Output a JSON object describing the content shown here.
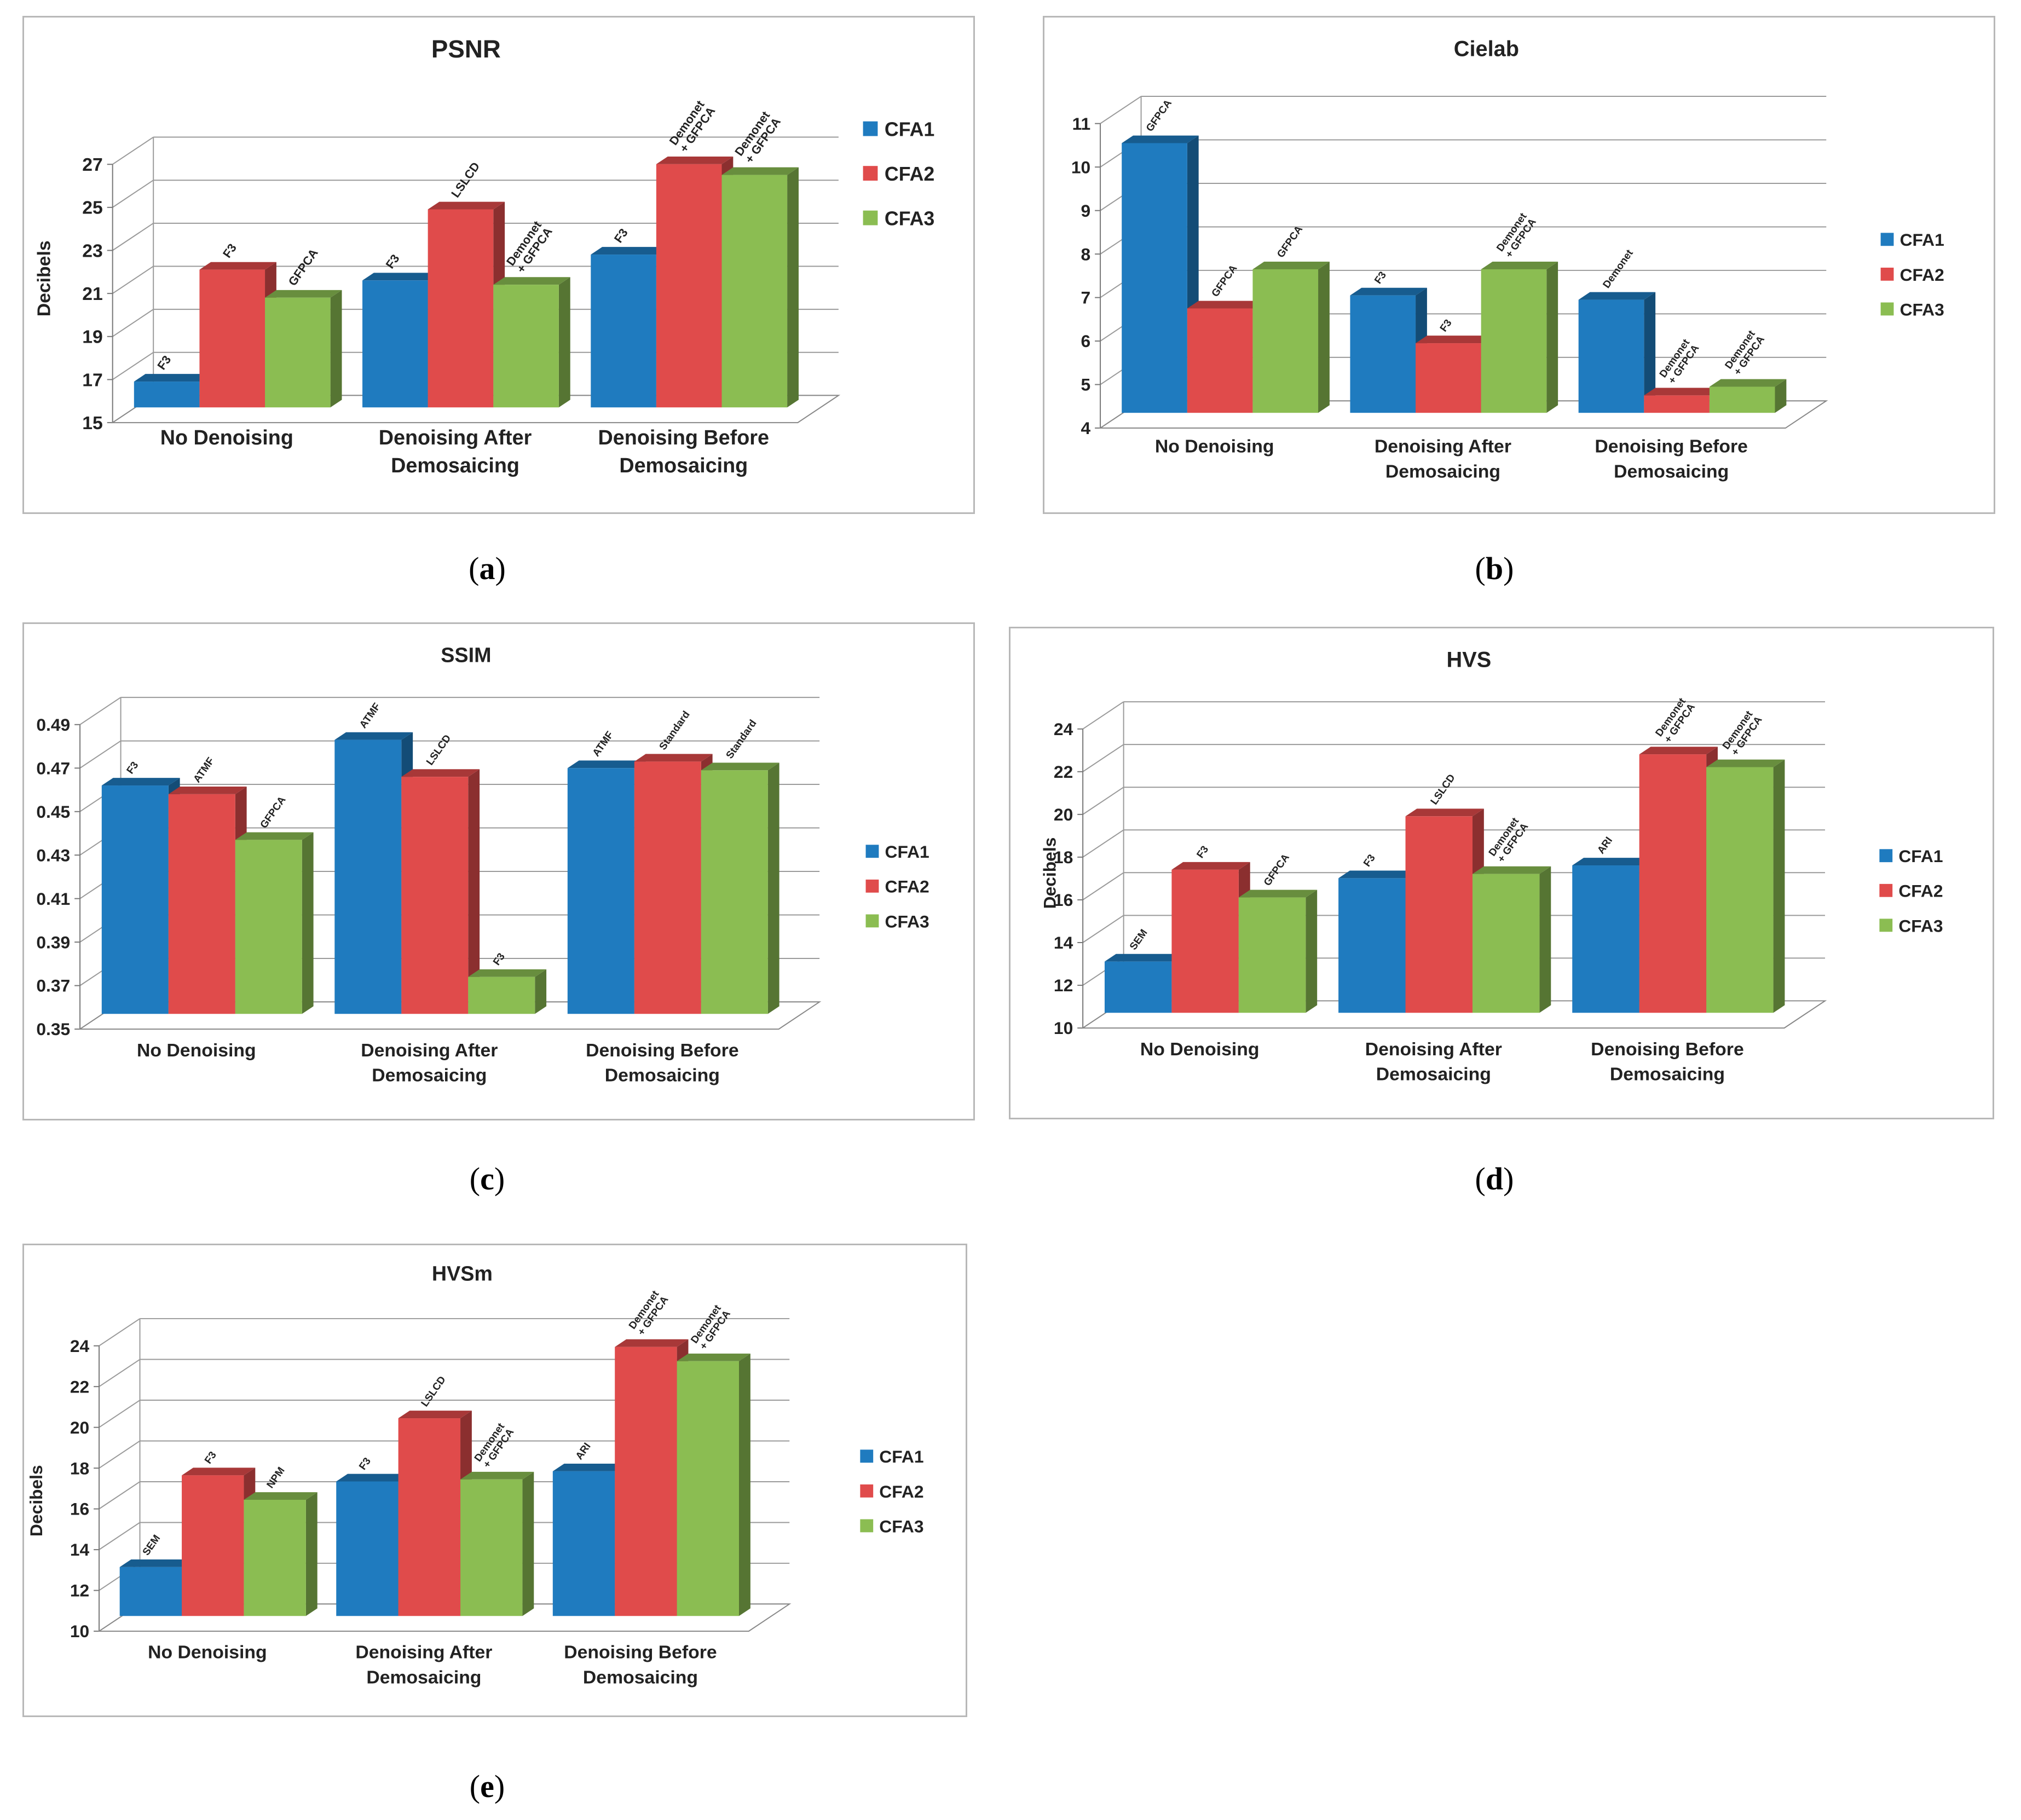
{
  "captions": {
    "a": [
      "(",
      "a",
      ")"
    ],
    "b": [
      "(",
      "b",
      ")"
    ],
    "c": [
      "(",
      "c",
      ")"
    ],
    "d": [
      "(",
      "d",
      ")"
    ],
    "e": [
      "(",
      "e",
      ")"
    ]
  },
  "colors": {
    "CFA1": "#1f7bbf",
    "CFA2": "#e04b4b",
    "CFA3": "#8bbd52"
  },
  "chart_data": [
    {
      "id": "a",
      "type": "bar",
      "title": "PSNR",
      "xlabel": "",
      "ylabel": "Decibels",
      "ylim": [
        15,
        27
      ],
      "yticks": [
        "15",
        "17",
        "19",
        "21",
        "23",
        "25",
        "27"
      ],
      "categories": [
        [
          "No Denoising"
        ],
        [
          "Denoising After",
          "Demosaicing"
        ],
        [
          "Denoising Before",
          "Demosaicing"
        ]
      ],
      "legend": [
        "CFA1",
        "CFA2",
        "CFA3"
      ],
      "series": [
        {
          "name": "CFA1",
          "values": [
            16.2,
            20.9,
            22.1
          ],
          "labels": [
            [
              "F3"
            ],
            [
              "F3"
            ],
            [
              "F3"
            ]
          ]
        },
        {
          "name": "CFA2",
          "values": [
            21.4,
            24.2,
            26.3
          ],
          "labels": [
            [
              "F3"
            ],
            [
              "LSLCD"
            ],
            [
              "Demonet",
              "+ GFPCA"
            ]
          ]
        },
        {
          "name": "CFA3",
          "values": [
            20.1,
            20.7,
            25.8
          ],
          "labels": [
            [
              "GFPCA"
            ],
            [
              "Demonet",
              "+ GFPCA"
            ],
            [
              "Demonet",
              "+ GFPCA"
            ]
          ]
        }
      ]
    },
    {
      "id": "b",
      "type": "bar",
      "title": "Cielab",
      "xlabel": "",
      "ylabel": "",
      "ylim": [
        4,
        11
      ],
      "yticks": [
        "4",
        "5",
        "6",
        "7",
        "8",
        "9",
        "10",
        "11"
      ],
      "categories": [
        [
          "No Denoising"
        ],
        [
          "Denoising After",
          "Demosaicing"
        ],
        [
          "Denoising Before",
          "Demosaicing"
        ]
      ],
      "legend": [
        "CFA1",
        "CFA2",
        "CFA3"
      ],
      "series": [
        {
          "name": "CFA1",
          "values": [
            10.2,
            6.7,
            6.6
          ],
          "labels": [
            [
              "GFPCA"
            ],
            [
              "F3"
            ],
            [
              "Demonet"
            ]
          ]
        },
        {
          "name": "CFA2",
          "values": [
            6.4,
            5.6,
            4.4
          ],
          "labels": [
            [
              "GFPCA"
            ],
            [
              "F3"
            ],
            [
              "Demonet",
              "+ GFPCA"
            ]
          ]
        },
        {
          "name": "CFA3",
          "values": [
            7.3,
            7.3,
            4.6
          ],
          "labels": [
            [
              "GFPCA"
            ],
            [
              "Demonet",
              "+ GFPCA"
            ],
            [
              "Demonet",
              "+ GFPCA"
            ]
          ]
        }
      ]
    },
    {
      "id": "c",
      "type": "bar",
      "title": "SSIM",
      "xlabel": "",
      "ylabel": "",
      "ylim": [
        0.35,
        0.49
      ],
      "yticks": [
        "0.35",
        "0.37",
        "0.39",
        "0.41",
        "0.43",
        "0.45",
        "0.47",
        "0.49"
      ],
      "categories": [
        [
          "No Denoising"
        ],
        [
          "Denoising After",
          "Demosaicing"
        ],
        [
          "Denoising Before",
          "Demosaicing"
        ]
      ],
      "legend": [
        "CFA1",
        "CFA2",
        "CFA3"
      ],
      "series": [
        {
          "name": "CFA1",
          "values": [
            0.455,
            0.476,
            0.463
          ],
          "labels": [
            [
              "F3"
            ],
            [
              "ATMF"
            ],
            [
              "ATMF"
            ]
          ]
        },
        {
          "name": "CFA2",
          "values": [
            0.451,
            0.459,
            0.466
          ],
          "labels": [
            [
              "ATMF"
            ],
            [
              "LSLCD"
            ],
            [
              "Standard"
            ]
          ]
        },
        {
          "name": "CFA3",
          "values": [
            0.43,
            0.367,
            0.462
          ],
          "labels": [
            [
              "GFPCA"
            ],
            [
              "F3"
            ],
            [
              "Standard"
            ]
          ]
        }
      ]
    },
    {
      "id": "d",
      "type": "bar",
      "title": "HVS",
      "xlabel": "",
      "ylabel": "Decibels",
      "ylim": [
        10,
        24
      ],
      "yticks": [
        "10",
        "12",
        "14",
        "16",
        "18",
        "20",
        "22",
        "24"
      ],
      "categories": [
        [
          "No Denoising"
        ],
        [
          "Denoising After",
          "Demosaicing"
        ],
        [
          "Denoising Before",
          "Demosaicing"
        ]
      ],
      "legend": [
        "CFA1",
        "CFA2",
        "CFA3"
      ],
      "series": [
        {
          "name": "CFA1",
          "values": [
            12.4,
            16.3,
            16.9
          ],
          "labels": [
            [
              "SEM"
            ],
            [
              "F3"
            ],
            [
              "ARI"
            ]
          ]
        },
        {
          "name": "CFA2",
          "values": [
            16.7,
            19.2,
            22.1
          ],
          "labels": [
            [
              "F3"
            ],
            [
              "LSLCD"
            ],
            [
              "Demonet",
              "+ GFPCA"
            ]
          ]
        },
        {
          "name": "CFA3",
          "values": [
            15.4,
            16.5,
            21.5
          ],
          "labels": [
            [
              "GFPCA"
            ],
            [
              "Demonet",
              "+ GFPCA"
            ],
            [
              "Demonet",
              "+ GFPCA"
            ]
          ]
        }
      ]
    },
    {
      "id": "e",
      "type": "bar",
      "title": "HVSm",
      "xlabel": "",
      "ylabel": "Decibels",
      "ylim": [
        10,
        24
      ],
      "yticks": [
        "10",
        "12",
        "14",
        "16",
        "18",
        "20",
        "22",
        "24"
      ],
      "categories": [
        [
          "No Denoising"
        ],
        [
          "Denoising After",
          "Demosaicing"
        ],
        [
          "Denoising Before",
          "Demosaicing"
        ]
      ],
      "legend": [
        "CFA1",
        "CFA2",
        "CFA3"
      ],
      "series": [
        {
          "name": "CFA1",
          "values": [
            12.4,
            16.6,
            17.1
          ],
          "labels": [
            [
              "SEM"
            ],
            [
              "F3"
            ],
            [
              "ARI"
            ]
          ]
        },
        {
          "name": "CFA2",
          "values": [
            16.9,
            19.7,
            23.2
          ],
          "labels": [
            [
              "F3"
            ],
            [
              "LSLCD"
            ],
            [
              "Demonet",
              "+ GFPCA"
            ]
          ]
        },
        {
          "name": "CFA3",
          "values": [
            15.7,
            16.7,
            22.5
          ],
          "labels": [
            [
              "NPM"
            ],
            [
              "Demonet",
              "+ GFPCA"
            ],
            [
              "Demonet",
              "+ GFPCA"
            ]
          ]
        }
      ]
    }
  ]
}
